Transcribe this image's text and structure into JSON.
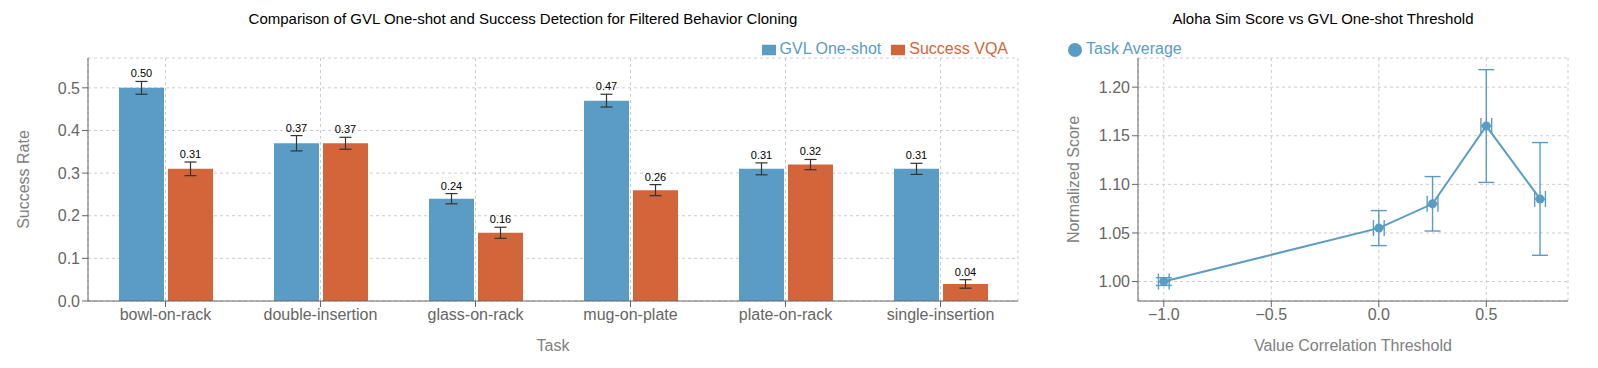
{
  "chart_data": [
    {
      "type": "bar",
      "title": "Comparison of GVL One-shot and Success Detection for Filtered Behavior Cloning",
      "x_label": "Task",
      "y_label": "Success Rate",
      "categories": [
        "bowl-on-rack",
        "double-insertion",
        "glass-on-rack",
        "mug-on-plate",
        "plate-on-rack",
        "single-insertion"
      ],
      "series": [
        {
          "name": "GVL One-shot",
          "color": "#5b9cc4",
          "values": [
            0.5,
            0.37,
            0.24,
            0.47,
            0.31,
            0.31
          ],
          "value_labels": [
            "0.50",
            "0.37",
            "0.24",
            "0.47",
            "0.31",
            "0.31"
          ],
          "errors": [
            0.015,
            0.018,
            0.012,
            0.015,
            0.014,
            0.013
          ]
        },
        {
          "name": "Success VQA",
          "color": "#d2653a",
          "values": [
            0.31,
            0.37,
            0.16,
            0.26,
            0.32,
            0.04
          ],
          "value_labels": [
            "0.31",
            "0.37",
            "0.16",
            "0.26",
            "0.32",
            "0.04"
          ],
          "errors": [
            0.016,
            0.014,
            0.013,
            0.013,
            0.012,
            0.01
          ]
        }
      ],
      "ylim": [
        0,
        0.57
      ],
      "yticks": [
        {
          "value": 0,
          "label": "0.0"
        },
        0.1,
        0.2,
        0.3,
        0.4,
        0.5
      ],
      "grid": true,
      "legend": "upper right",
      "data_labels": true
    },
    {
      "type": "line",
      "title": "Aloha Sim Score vs GVL One-shot Threshold",
      "x_label": "Value Correlation Threshold",
      "y_label": "Normalized Score",
      "x": [
        -1.0,
        0.0,
        0.25,
        0.5,
        0.75
      ],
      "series": [
        {
          "name": "Task Average",
          "color": "#5b9cc4",
          "values": [
            1.0,
            1.055,
            1.08,
            1.16,
            1.085
          ],
          "y_errors": [
            0.004,
            0.018,
            0.028,
            0.058,
            0.058
          ],
          "x_errors": [
            0.025,
            0.025,
            0.025,
            0.025,
            0.025
          ],
          "marker": "circle"
        }
      ],
      "xlim": [
        -1.12,
        0.88
      ],
      "xticks": [
        {
          "value": -1.0,
          "label": "−1.0"
        },
        {
          "value": -0.5,
          "label": "−0.5"
        },
        {
          "value": 0.0,
          "label": "0.0"
        },
        0.5
      ],
      "ylim": [
        0.98,
        1.23
      ],
      "yticks": [
        {
          "value": 1.0,
          "label": "1.00"
        },
        1.05,
        {
          "value": 1.1,
          "label": "1.10"
        },
        1.15,
        {
          "value": 1.2,
          "label": "1.20"
        }
      ],
      "grid": true,
      "legend": "upper left"
    }
  ]
}
